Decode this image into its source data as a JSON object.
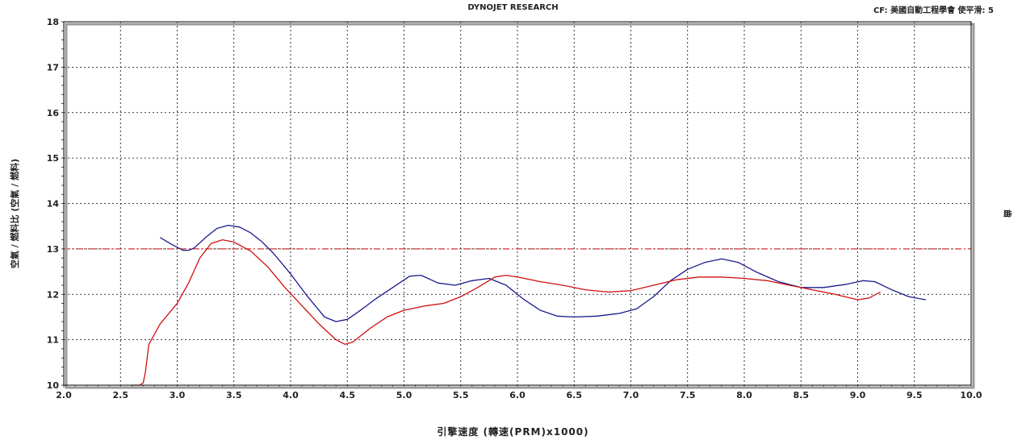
{
  "header": {
    "title": "DYNOJET RESEARCH",
    "correction": "CF: 美國自動工程學會  使平滑: 5"
  },
  "chart_data": {
    "type": "line",
    "title": "DYNOJET RESEARCH",
    "xlabel": "引擎速度 (轉速(PRM)x1000)",
    "ylabel": "空氣 / 燃料比 (空氣 / 燃料)",
    "ylabel_right": "齒",
    "xlim": [
      2.0,
      10.0
    ],
    "ylim": [
      10,
      18
    ],
    "xticks": [
      "2.0",
      "2.5",
      "3.0",
      "3.5",
      "4.0",
      "4.5",
      "5.0",
      "5.5",
      "6.0",
      "6.5",
      "7.0",
      "7.5",
      "8.0",
      "8.5",
      "9.0",
      "9.5",
      "10.0"
    ],
    "yticks": [
      "10",
      "11",
      "12",
      "13",
      "14",
      "15",
      "16",
      "17",
      "18"
    ],
    "grid": true,
    "reference_line": {
      "y": 13,
      "color": "#d03030",
      "style": "dash-dot"
    },
    "series": [
      {
        "color": "#1a1a8c",
        "x": [
          2.85,
          2.95,
          3.05,
          3.1,
          3.15,
          3.25,
          3.35,
          3.45,
          3.55,
          3.65,
          3.75,
          3.85,
          4.0,
          4.15,
          4.3,
          4.4,
          4.5,
          4.6,
          4.75,
          4.9,
          5.05,
          5.15,
          5.3,
          5.45,
          5.6,
          5.75,
          5.9,
          6.05,
          6.2,
          6.35,
          6.5,
          6.7,
          6.9,
          7.05,
          7.2,
          7.35,
          7.5,
          7.65,
          7.8,
          7.95,
          8.1,
          8.3,
          8.5,
          8.7,
          8.9,
          9.05,
          9.15,
          9.3,
          9.45,
          9.6
        ],
        "y": [
          13.25,
          13.1,
          12.97,
          12.97,
          13.02,
          13.25,
          13.45,
          13.52,
          13.48,
          13.35,
          13.15,
          12.9,
          12.45,
          11.95,
          11.5,
          11.4,
          11.45,
          11.62,
          11.9,
          12.15,
          12.4,
          12.42,
          12.25,
          12.2,
          12.3,
          12.35,
          12.2,
          11.9,
          11.65,
          11.52,
          11.5,
          11.52,
          11.58,
          11.68,
          11.95,
          12.3,
          12.55,
          12.7,
          12.78,
          12.7,
          12.5,
          12.28,
          12.15,
          12.15,
          12.22,
          12.3,
          12.28,
          12.1,
          11.95,
          11.88
        ]
      },
      {
        "color": "#d01010",
        "x": [
          2.6,
          2.65,
          2.67,
          2.7,
          2.72,
          2.75,
          2.85,
          3.0,
          3.1,
          3.2,
          3.3,
          3.4,
          3.5,
          3.65,
          3.8,
          3.95,
          4.1,
          4.25,
          4.4,
          4.48,
          4.55,
          4.7,
          4.85,
          5.0,
          5.2,
          5.35,
          5.5,
          5.65,
          5.8,
          5.9,
          6.0,
          6.2,
          6.4,
          6.6,
          6.8,
          7.0,
          7.2,
          7.4,
          7.6,
          7.8,
          8.0,
          8.2,
          8.4,
          8.6,
          8.8,
          9.0,
          9.1,
          9.2
        ],
        "y": [
          10.0,
          10.0,
          9.98,
          10.05,
          10.3,
          10.9,
          11.35,
          11.8,
          12.25,
          12.8,
          13.12,
          13.2,
          13.15,
          12.95,
          12.6,
          12.15,
          11.75,
          11.35,
          11.0,
          10.9,
          10.95,
          11.25,
          11.5,
          11.65,
          11.75,
          11.8,
          11.95,
          12.15,
          12.38,
          12.42,
          12.38,
          12.28,
          12.2,
          12.1,
          12.05,
          12.08,
          12.2,
          12.32,
          12.38,
          12.38,
          12.35,
          12.3,
          12.2,
          12.1,
          12.0,
          11.88,
          11.92,
          12.05
        ]
      }
    ]
  }
}
